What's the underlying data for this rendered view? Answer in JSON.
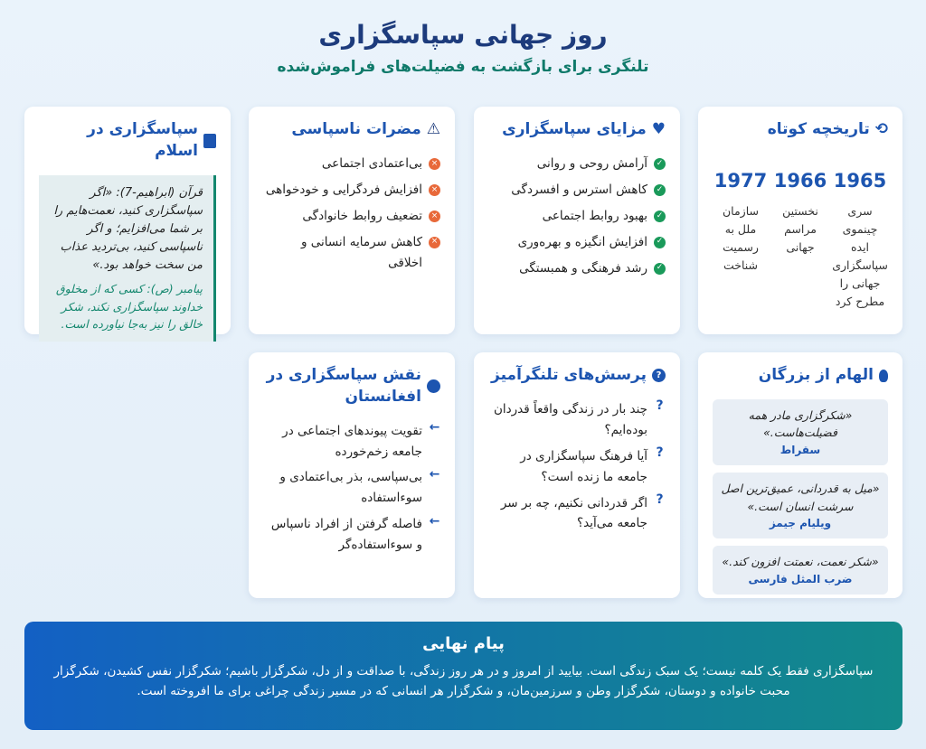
{
  "header": {
    "title": "روز جهانی سپاسگزاری",
    "subtitle": "تلنگری برای بازگشت به فضیلت‌های فراموش‌شده"
  },
  "history": {
    "title": "تاریخچه کوتاه",
    "icon": "history-icon",
    "items": [
      {
        "year": "1965",
        "text": "سری چینموی ایده سپاسگزاری جهانی را مطرح کرد"
      },
      {
        "year": "1966",
        "text": "نخستین مراسم جهانی"
      },
      {
        "year": "1977",
        "text": "سازمان ملل به رسمیت شناخت"
      }
    ]
  },
  "benefits": {
    "title": "مزایای سپاسگزاری",
    "icon": "heart-icon",
    "items": [
      "آرامش روحی و روانی",
      "کاهش استرس و افسردگی",
      "بهبود روابط اجتماعی",
      "افزایش انگیزه و بهره‌وری",
      "رشد فرهنگی و همبستگی"
    ]
  },
  "harms": {
    "title": "مضرات ناسپاسی",
    "icon": "warning-icon",
    "items": [
      "بی‌اعتمادی اجتماعی",
      "افزایش فردگرایی و خودخواهی",
      "تضعیف روابط خانوادگی",
      "کاهش سرمایه انسانی و اخلاقی"
    ]
  },
  "islam": {
    "title": "سپاسگزاری در اسلام",
    "icon": "book-icon",
    "quran": "قرآن (ابراهیم-7): «اگر سپاسگزاری کنید، نعمت‌هایم را بر شما می‌افزایم؛ و اگر ناسپاسی کنید، بی‌تردید عذاب من سخت خواهد بود.»",
    "prophet": "پیامبر (ص): کسی که از مخلوق خداوند سپاسگزاری نکند، شکر خالق را نیز به‌جا نیاورده است."
  },
  "inspiration": {
    "title": "الهام از بزرگان",
    "icon": "lightbulb-icon",
    "quotes": [
      {
        "text": "«شکرگزاری مادر همه فضیلت‌هاست.»",
        "author": "سقراط"
      },
      {
        "text": "«میل به قدردانی، عمیق‌ترین اصل سرشت انسان است.»",
        "author": "ویلیام جیمز"
      },
      {
        "text": "«شکر نعمت، نعمتت افزون کند.»",
        "author": "ضرب المثل فارسی"
      }
    ]
  },
  "questions": {
    "title": "پرسش‌های تلنگرآمیز",
    "icon": "question-icon",
    "items": [
      "چند بار در زندگی واقعاً قدردان بوده‌ایم؟",
      "آیا فرهنگ سپاسگزاری در جامعه ما زنده است؟",
      "اگر قدردانی نکنیم، چه بر سر جامعه می‌آید؟"
    ]
  },
  "afghanistan": {
    "title": "نقش سپاسگزاری در افغانستان",
    "icon": "globe-icon",
    "items": [
      "تقویت پیوندهای اجتماعی در جامعه زخم‌خورده",
      "بی‌سپاسی، بذر بی‌اعتمادی و سوءاستفاده",
      "فاصله گرفتن از افراد ناسپاس و سوءاستفاده‌گر"
    ]
  },
  "final": {
    "title": "پیام نهایی",
    "text": "سپاسگزاری فقط یک کلمه نیست؛ یک سبک زندگی است. بیایید از امروز و در هر روز زندگی، با صداقت و از دل، شکرگزار باشیم؛ شکرگزار نفس کشیدن، شکرگزار محبت خانواده و دوستان، شکرگزار وطن و سرزمین‌مان، و شکرگزار هر انسانی که در مسیر زندگی چراغی برای ما افروخته است."
  },
  "colors": {
    "title": "#1d3b7c",
    "accent": "#1d55b0",
    "teal": "#0f7a6a",
    "check": "#1a9a5a",
    "cross": "#e8693a"
  }
}
